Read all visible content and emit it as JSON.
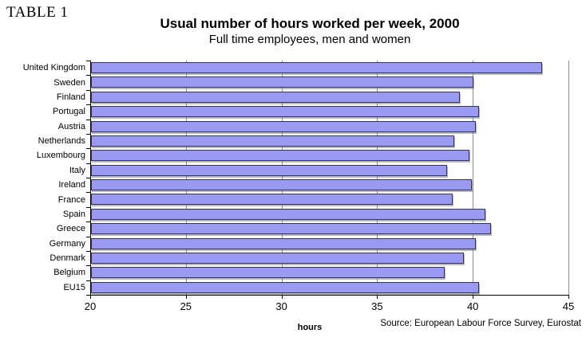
{
  "page": {
    "table_label": "TABLE 1"
  },
  "chart_data": {
    "type": "bar",
    "orientation": "horizontal",
    "title": "Usual number of hours worked per week, 2000",
    "subtitle": "Full time employees, men and women",
    "xlabel": "hours",
    "source": "Source: European Labour Force Survey, Eurostat",
    "xlim": [
      20,
      45
    ],
    "xticks": [
      20,
      25,
      30,
      35,
      40,
      45
    ],
    "grid": true,
    "legend": "none",
    "categories": [
      "United Kingdom",
      "Sweden",
      "Finland",
      "Portugal",
      "Austria",
      "Netherlands",
      "Luxembourg",
      "Italy",
      "Ireland",
      "France",
      "Spain",
      "Greece",
      "Germany",
      "Denmark",
      "Belgium",
      "EU15"
    ],
    "values": [
      43.6,
      40.0,
      39.3,
      40.3,
      40.1,
      39.0,
      39.8,
      38.6,
      39.9,
      38.9,
      40.6,
      40.9,
      40.1,
      39.5,
      38.5,
      40.3
    ],
    "bar_color": "#9a9af2",
    "bar_border_color": "#33335a",
    "gridline_color": "#8c8c8c"
  }
}
